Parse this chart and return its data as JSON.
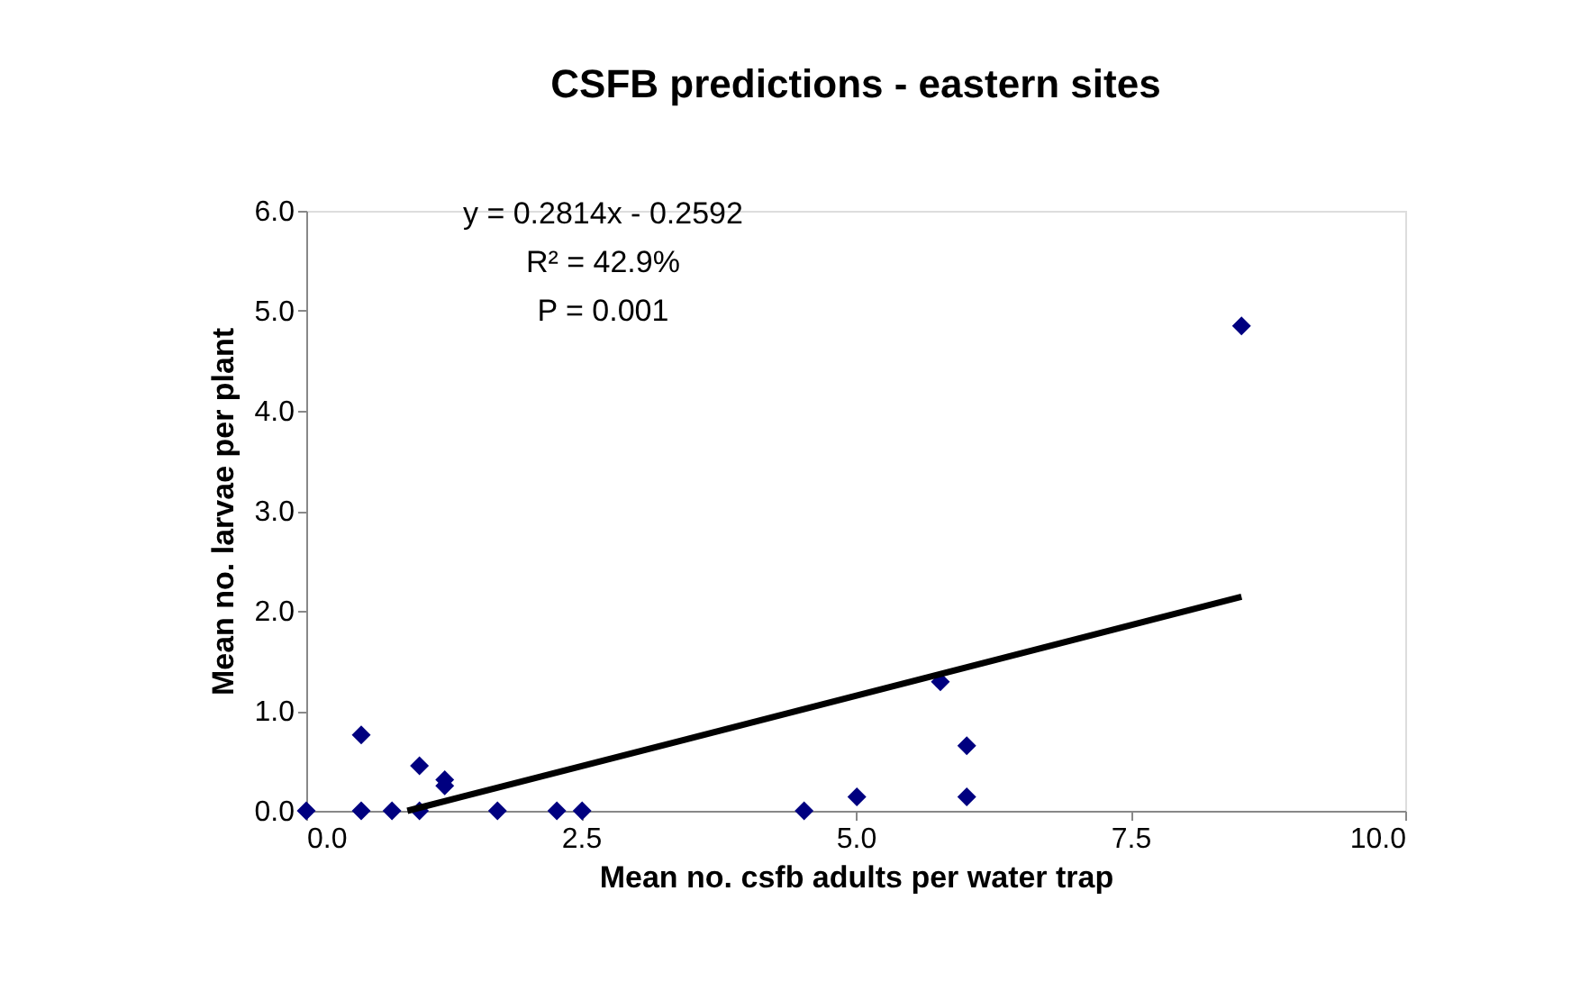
{
  "chart_data": {
    "type": "scatter",
    "title": "CSFB predictions - eastern sites",
    "xlabel": "Mean no. csfb adults per water trap",
    "ylabel": "Mean no. larvae per plant",
    "marker": "diamond",
    "grid": false,
    "xlim": [
      0,
      10
    ],
    "ylim": [
      0,
      6
    ],
    "xticks": [
      {
        "value": 0,
        "label": "0.0"
      },
      {
        "value": 2.5,
        "label": "2.5"
      },
      {
        "value": 5,
        "label": "5.0"
      },
      {
        "value": 7.5,
        "label": "7.5"
      },
      {
        "value": 10,
        "label": "10.0"
      }
    ],
    "yticks": [
      {
        "value": 0,
        "label": "0.0"
      },
      {
        "value": 1,
        "label": "1.0"
      },
      {
        "value": 2,
        "label": "2.0"
      },
      {
        "value": 3,
        "label": "3.0"
      },
      {
        "value": 4,
        "label": "4.0"
      },
      {
        "value": 5,
        "label": "5.0"
      },
      {
        "value": 6,
        "label": "6.0"
      }
    ],
    "series": [
      {
        "color": "#000080",
        "x": [
          0,
          0.5,
          0.5,
          0.78,
          1.03,
          1.03,
          1.26,
          1.26,
          1.74,
          2.28,
          2.51,
          4.53,
          5.01,
          5.77,
          6.01,
          6.01,
          8.51
        ],
        "values": [
          0,
          0.76,
          0,
          0,
          0.45,
          0,
          0.31,
          0.25,
          0,
          0,
          0,
          0,
          0.14,
          1.29,
          0.65,
          0.14,
          4.85
        ]
      },
      {
        "type": "line",
        "marker": "none",
        "line_style": "solid",
        "color": "#000000",
        "x": [
          0.92,
          8.51
        ],
        "values": [
          0,
          2.14
        ]
      }
    ],
    "annotations": [
      "y = 0.2814x - 0.2592",
      "R² = 42.9%",
      "P = 0.001"
    ]
  }
}
